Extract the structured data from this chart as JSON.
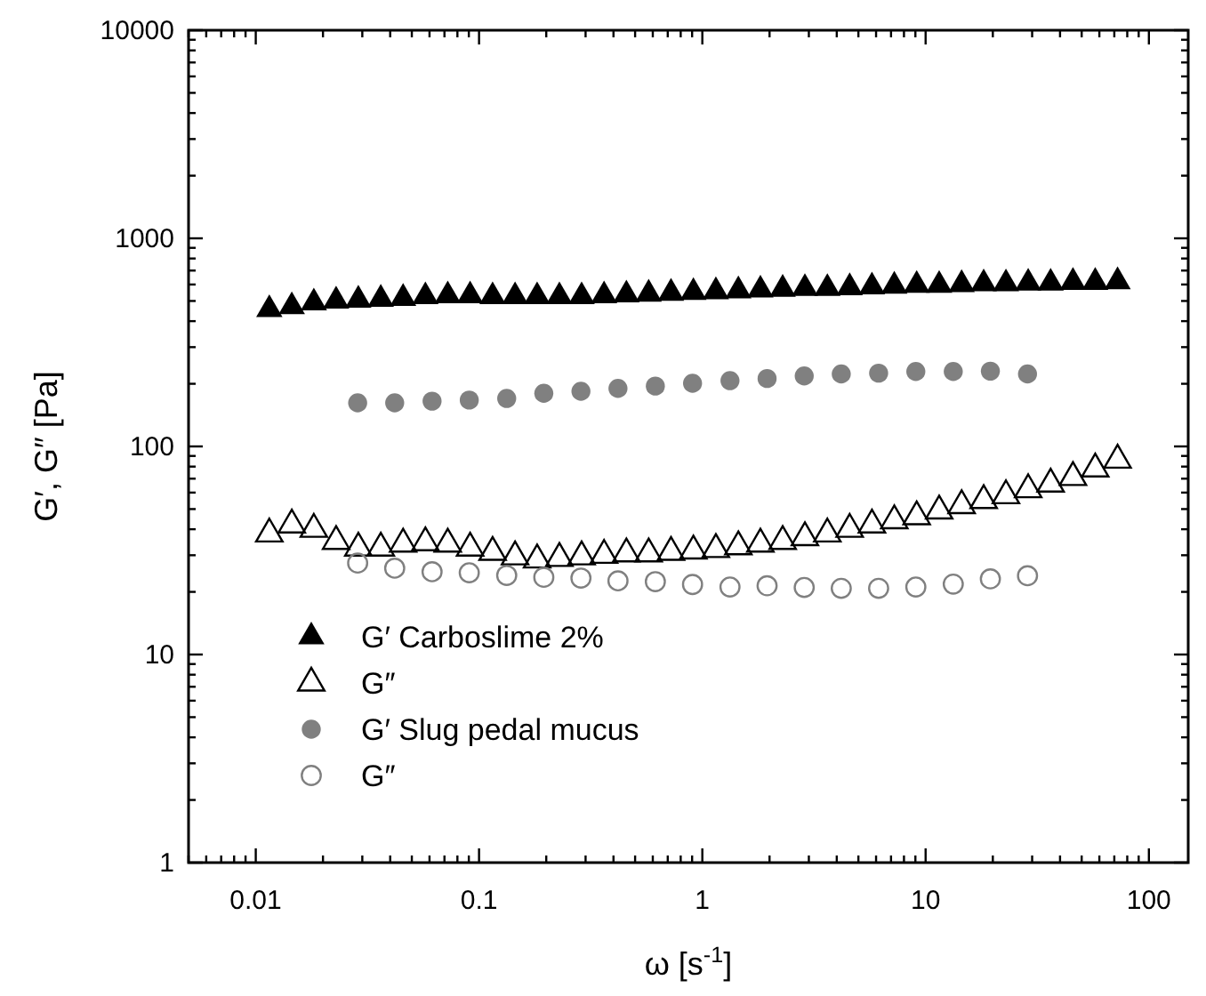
{
  "chart_data": {
    "type": "scatter",
    "xlabel": "ω  [s$^{-1}$]",
    "ylabel": "G′, G″  [Pa]",
    "log": "xy",
    "grid": false,
    "legend": "bottom left",
    "xlim": [
      0.005,
      150
    ],
    "ylim": [
      1,
      10000
    ],
    "xticks": [
      {
        "value": 0.005,
        "label": null
      },
      {
        "value": 0.006,
        "label": null
      },
      {
        "value": 0.007,
        "label": null
      },
      {
        "value": 0.008,
        "label": null
      },
      {
        "value": 0.009,
        "label": null
      },
      0.01,
      {
        "value": 0.02,
        "label": null
      },
      {
        "value": 0.03,
        "label": null
      },
      {
        "value": 0.04,
        "label": null
      },
      {
        "value": 0.05,
        "label": null
      },
      {
        "value": 0.06,
        "label": null
      },
      {
        "value": 0.07,
        "label": null
      },
      {
        "value": 0.08,
        "label": null
      },
      {
        "value": 0.09,
        "label": null
      },
      0.1,
      {
        "value": 0.2,
        "label": null
      },
      {
        "value": 0.3,
        "label": null
      },
      {
        "value": 0.4,
        "label": null
      },
      {
        "value": 0.5,
        "label": null
      },
      {
        "value": 0.6,
        "label": null
      },
      {
        "value": 0.7,
        "label": null
      },
      {
        "value": 0.8,
        "label": null
      },
      {
        "value": 0.9,
        "label": null
      },
      1,
      {
        "value": 2,
        "label": null
      },
      {
        "value": 3,
        "label": null
      },
      {
        "value": 4,
        "label": null
      },
      {
        "value": 5,
        "label": null
      },
      {
        "value": 6,
        "label": null
      },
      {
        "value": 7,
        "label": null
      },
      {
        "value": 8,
        "label": null
      },
      {
        "value": 9,
        "label": null
      },
      10,
      {
        "value": 20,
        "label": null
      },
      {
        "value": 30,
        "label": null
      },
      {
        "value": 40,
        "label": null
      },
      {
        "value": 50,
        "label": null
      },
      {
        "value": 60,
        "label": null
      },
      {
        "value": 70,
        "label": null
      },
      {
        "value": 80,
        "label": null
      },
      {
        "value": 90,
        "label": null
      },
      100
    ],
    "yticks": [
      1,
      {
        "value": 2,
        "label": null
      },
      {
        "value": 3,
        "label": null
      },
      {
        "value": 4,
        "label": null
      },
      {
        "value": 5,
        "label": null
      },
      {
        "value": 6,
        "label": null
      },
      {
        "value": 7,
        "label": null
      },
      {
        "value": 8,
        "label": null
      },
      {
        "value": 9,
        "label": null
      },
      10,
      {
        "value": 20,
        "label": null
      },
      {
        "value": 30,
        "label": null
      },
      {
        "value": 40,
        "label": null
      },
      {
        "value": 50,
        "label": null
      },
      {
        "value": 60,
        "label": null
      },
      {
        "value": 70,
        "label": null
      },
      {
        "value": 80,
        "label": null
      },
      {
        "value": 90,
        "label": null
      },
      100,
      {
        "value": 200,
        "label": null
      },
      {
        "value": 300,
        "label": null
      },
      {
        "value": 400,
        "label": null
      },
      {
        "value": 500,
        "label": null
      },
      {
        "value": 600,
        "label": null
      },
      {
        "value": 700,
        "label": null
      },
      {
        "value": 800,
        "label": null
      },
      {
        "value": 900,
        "label": null
      },
      1000,
      {
        "value": 2000,
        "label": null
      },
      {
        "value": 3000,
        "label": null
      },
      {
        "value": 4000,
        "label": null
      },
      {
        "value": 5000,
        "label": null
      },
      {
        "value": 6000,
        "label": null
      },
      {
        "value": 7000,
        "label": null
      },
      {
        "value": 8000,
        "label": null
      },
      {
        "value": 9000,
        "label": null
      },
      10000
    ],
    "series": [
      {
        "name": "G′ Carboslime 2%",
        "color": "#000000",
        "marker": "triangle",
        "x": [
          0.0115,
          0.0145,
          0.0182,
          0.0229,
          0.0288,
          0.0363,
          0.0457,
          0.0575,
          0.0724,
          0.0912,
          0.115,
          0.145,
          0.182,
          0.229,
          0.288,
          0.363,
          0.457,
          0.575,
          0.724,
          0.912,
          1.15,
          1.45,
          1.82,
          2.29,
          2.88,
          3.63,
          4.57,
          5.75,
          7.24,
          9.12,
          11.5,
          14.5,
          18.2,
          22.9,
          28.8,
          36.3,
          45.7,
          57.5,
          72.4
        ],
        "values": [
          455,
          470,
          490,
          500,
          505,
          510,
          515,
          525,
          530,
          530,
          525,
          525,
          525,
          525,
          525,
          530,
          535,
          540,
          545,
          550,
          555,
          560,
          565,
          570,
          575,
          575,
          580,
          585,
          590,
          595,
          595,
          600,
          605,
          605,
          610,
          610,
          615,
          615,
          620
        ]
      },
      {
        "name": "G″",
        "color": "#000000",
        "marker": "triangle",
        "x": [
          0.0115,
          0.0145,
          0.0182,
          0.0229,
          0.0288,
          0.0363,
          0.0457,
          0.0575,
          0.0724,
          0.0912,
          0.115,
          0.145,
          0.182,
          0.229,
          0.288,
          0.363,
          0.457,
          0.575,
          0.724,
          0.912,
          1.15,
          1.45,
          1.82,
          2.29,
          2.88,
          3.63,
          4.57,
          5.75,
          7.24,
          9.12,
          11.5,
          14.5,
          18.2,
          22.9,
          28.8,
          36.3,
          45.7,
          57.5,
          72.4
        ],
        "values": [
          38,
          42,
          40,
          35,
          32.5,
          32.5,
          34,
          34.5,
          34,
          32.5,
          31,
          29.5,
          28.5,
          29,
          29.5,
          30,
          30.5,
          30.5,
          31,
          31.5,
          32,
          33,
          34,
          35,
          36.5,
          38,
          40,
          42,
          44,
          46,
          49,
          52,
          55,
          58,
          62,
          66,
          71,
          78,
          86
        ]
      },
      {
        "name": "G′ Slug pedal mucus",
        "color": "#808080",
        "marker": "circle",
        "x": [
          0.0286,
          0.0419,
          0.0616,
          0.0904,
          0.133,
          0.195,
          0.286,
          0.419,
          0.616,
          0.904,
          1.33,
          1.95,
          2.86,
          4.19,
          6.16,
          9.04,
          13.3,
          19.5,
          28.6
        ],
        "values": [
          162,
          162,
          165,
          167,
          170,
          180,
          184,
          190,
          195,
          201,
          207,
          212,
          218,
          223,
          225,
          229,
          229,
          230,
          223
        ]
      },
      {
        "name": "G″",
        "color": "#808080",
        "marker": "circle",
        "x": [
          0.0286,
          0.0419,
          0.0616,
          0.0904,
          0.133,
          0.195,
          0.286,
          0.419,
          0.616,
          0.904,
          1.33,
          1.95,
          2.86,
          4.19,
          6.16,
          9.04,
          13.3,
          19.5,
          28.6
        ],
        "values": [
          27.5,
          26,
          25,
          24.7,
          24,
          23.5,
          23.3,
          22.6,
          22.4,
          21.7,
          21.1,
          21.4,
          21,
          20.8,
          20.8,
          21.1,
          21.8,
          23.1,
          23.9
        ]
      }
    ]
  }
}
